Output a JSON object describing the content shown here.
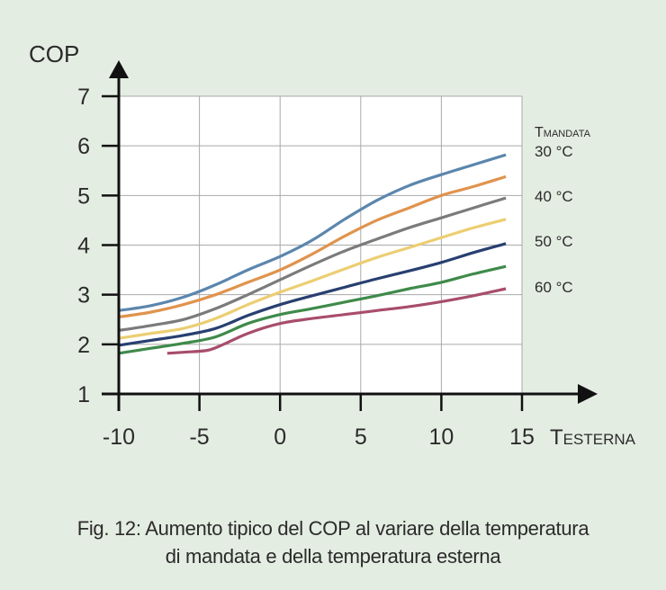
{
  "chart_data": {
    "type": "line",
    "ylabel": "COP",
    "xlabel": {
      "main": "T",
      "sub": "ESTERNA"
    },
    "legend_title": {
      "main": "T",
      "sub": "MANDATA"
    },
    "x_ticks": [
      -10,
      -5,
      0,
      5,
      10,
      15
    ],
    "y_ticks": [
      1,
      2,
      3,
      4,
      5,
      6,
      7
    ],
    "xlim": [
      -10,
      15
    ],
    "ylim": [
      1,
      7
    ],
    "grid": true,
    "series": [
      {
        "color": "#5b86ad",
        "points": [
          [
            -10,
            2.68
          ],
          [
            -8,
            2.78
          ],
          [
            -6,
            2.95
          ],
          [
            -4,
            3.2
          ],
          [
            -2,
            3.5
          ],
          [
            0,
            3.77
          ],
          [
            2,
            4.1
          ],
          [
            4,
            4.52
          ],
          [
            6,
            4.9
          ],
          [
            8,
            5.2
          ],
          [
            10,
            5.42
          ],
          [
            12,
            5.62
          ],
          [
            14,
            5.82
          ]
        ]
      },
      {
        "color": "#e0934d",
        "points": [
          [
            -10,
            2.55
          ],
          [
            -8,
            2.65
          ],
          [
            -6,
            2.8
          ],
          [
            -4,
            3.0
          ],
          [
            -2,
            3.25
          ],
          [
            0,
            3.5
          ],
          [
            2,
            3.82
          ],
          [
            4,
            4.18
          ],
          [
            6,
            4.5
          ],
          [
            8,
            4.75
          ],
          [
            10,
            5.0
          ],
          [
            12,
            5.18
          ],
          [
            14,
            5.38
          ]
        ]
      },
      {
        "color": "#7b7b7b",
        "points": [
          [
            -10,
            2.28
          ],
          [
            -8,
            2.38
          ],
          [
            -6,
            2.5
          ],
          [
            -4,
            2.72
          ],
          [
            -2,
            3.0
          ],
          [
            0,
            3.3
          ],
          [
            2,
            3.6
          ],
          [
            4,
            3.88
          ],
          [
            6,
            4.12
          ],
          [
            8,
            4.35
          ],
          [
            10,
            4.55
          ],
          [
            12,
            4.75
          ],
          [
            14,
            4.95
          ]
        ]
      },
      {
        "color": "#ecce72",
        "points": [
          [
            -10,
            2.12
          ],
          [
            -8,
            2.22
          ],
          [
            -6,
            2.32
          ],
          [
            -4,
            2.52
          ],
          [
            -2,
            2.8
          ],
          [
            0,
            3.05
          ],
          [
            2,
            3.28
          ],
          [
            4,
            3.52
          ],
          [
            6,
            3.75
          ],
          [
            8,
            3.95
          ],
          [
            10,
            4.15
          ],
          [
            12,
            4.35
          ],
          [
            14,
            4.52
          ]
        ]
      },
      {
        "color": "#283f70",
        "points": [
          [
            -10,
            1.98
          ],
          [
            -8,
            2.08
          ],
          [
            -6,
            2.18
          ],
          [
            -4,
            2.32
          ],
          [
            -2,
            2.58
          ],
          [
            0,
            2.8
          ],
          [
            2,
            2.98
          ],
          [
            4,
            3.15
          ],
          [
            6,
            3.32
          ],
          [
            8,
            3.48
          ],
          [
            10,
            3.65
          ],
          [
            12,
            3.85
          ],
          [
            14,
            4.03
          ]
        ]
      },
      {
        "color": "#3f8a4a",
        "points": [
          [
            -10,
            1.82
          ],
          [
            -8,
            1.92
          ],
          [
            -6,
            2.02
          ],
          [
            -4,
            2.15
          ],
          [
            -2,
            2.42
          ],
          [
            0,
            2.6
          ],
          [
            2,
            2.72
          ],
          [
            4,
            2.85
          ],
          [
            6,
            2.98
          ],
          [
            8,
            3.12
          ],
          [
            10,
            3.25
          ],
          [
            12,
            3.42
          ],
          [
            14,
            3.57
          ]
        ]
      },
      {
        "color": "#a84d6c",
        "points": [
          [
            -7,
            1.82
          ],
          [
            -6,
            1.84
          ],
          [
            -4.5,
            1.88
          ],
          [
            -3.5,
            2.0
          ],
          [
            -2,
            2.22
          ],
          [
            0,
            2.42
          ],
          [
            2,
            2.52
          ],
          [
            4,
            2.6
          ],
          [
            6,
            2.68
          ],
          [
            8,
            2.76
          ],
          [
            10,
            2.86
          ],
          [
            12,
            2.98
          ],
          [
            14,
            3.12
          ]
        ]
      }
    ],
    "annotations": [
      "30 °C",
      "40 °C",
      "50 °C",
      "60 °C"
    ]
  },
  "caption": {
    "line1": "Fig. 12: Aumento tipico del COP al variare della temperatura",
    "line2": "di mandata e della temperatura esterna"
  }
}
